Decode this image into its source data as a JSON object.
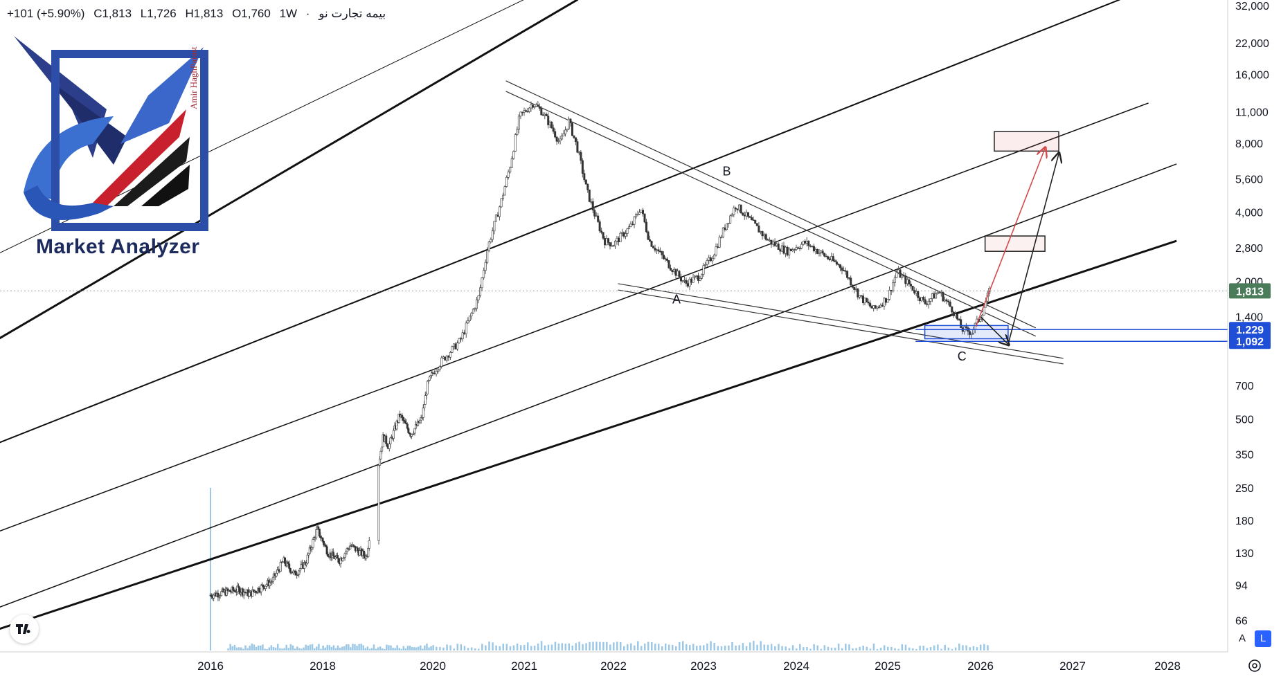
{
  "header": {
    "symbol": "بیمه تجارت نو",
    "interval_sep": "·",
    "interval": "1W",
    "open": "O1,760",
    "high": "H1,813",
    "low": "L1,726",
    "close": "C1,813",
    "change": "+101 (+5.90%)"
  },
  "watermark": {
    "brand": "Market Analyzer",
    "author": "Amir HaghParast"
  },
  "chart_data": {
    "type": "candlestick",
    "scale": "log",
    "ylim": [
      60,
      32000
    ],
    "price_axis_labels": [
      "32,000",
      "22,000",
      "16,000",
      "11,000",
      "8,000",
      "5,600",
      "4,000",
      "2,800",
      "2,000",
      "1,400",
      "700",
      "500",
      "350",
      "250",
      "180",
      "130",
      "94",
      "66"
    ],
    "time_axis_labels": [
      "2016",
      "2018",
      "2020",
      "2021",
      "2022",
      "2023",
      "2024",
      "2025",
      "2026",
      "2027",
      "2028"
    ],
    "last_price": {
      "value": 1813,
      "label": "1,813",
      "color": "#4a7c59"
    },
    "price_levels": [
      {
        "value": 1229,
        "label": "1,229",
        "color": "#1e4fd6"
      },
      {
        "value": 1092,
        "label": "1,092",
        "color": "#1e4fd6"
      }
    ],
    "price_path": [
      [
        2016.0,
        85
      ],
      [
        2016.3,
        88
      ],
      [
        2016.5,
        90
      ],
      [
        2016.7,
        86
      ],
      [
        2016.9,
        92
      ],
      [
        2017.1,
        98
      ],
      [
        2017.3,
        120
      ],
      [
        2017.5,
        105
      ],
      [
        2017.7,
        118
      ],
      [
        2017.9,
        165
      ],
      [
        2018.1,
        130
      ],
      [
        2018.3,
        120
      ],
      [
        2018.5,
        140
      ],
      [
        2018.8,
        125
      ],
      [
        2019.0,
        300
      ],
      [
        2019.1,
        420
      ],
      [
        2019.2,
        380
      ],
      [
        2019.4,
        520
      ],
      [
        2019.6,
        430
      ],
      [
        2019.8,
        500
      ],
      [
        2019.9,
        700
      ],
      [
        2020.1,
        900
      ],
      [
        2020.3,
        1100
      ],
      [
        2020.5,
        1700
      ],
      [
        2020.6,
        2800
      ],
      [
        2020.75,
        4500
      ],
      [
        2020.85,
        6500
      ],
      [
        2020.95,
        10500
      ],
      [
        2021.1,
        12000
      ],
      [
        2021.2,
        11000
      ],
      [
        2021.3,
        9500
      ],
      [
        2021.4,
        8000
      ],
      [
        2021.5,
        10000
      ],
      [
        2021.6,
        7500
      ],
      [
        2021.7,
        5000
      ],
      [
        2021.8,
        3800
      ],
      [
        2021.9,
        3000
      ],
      [
        2022.0,
        2900
      ],
      [
        2022.2,
        3500
      ],
      [
        2022.3,
        4200
      ],
      [
        2022.4,
        3000
      ],
      [
        2022.6,
        2400
      ],
      [
        2022.8,
        1950
      ],
      [
        2022.95,
        2100
      ],
      [
        2023.1,
        2600
      ],
      [
        2023.25,
        3600
      ],
      [
        2023.35,
        4300
      ],
      [
        2023.5,
        3700
      ],
      [
        2023.7,
        3000
      ],
      [
        2023.9,
        2700
      ],
      [
        2024.1,
        2950
      ],
      [
        2024.3,
        2600
      ],
      [
        2024.5,
        2300
      ],
      [
        2024.7,
        1700
      ],
      [
        2024.85,
        1500
      ],
      [
        2025.0,
        1700
      ],
      [
        2025.1,
        2200
      ],
      [
        2025.25,
        1900
      ],
      [
        2025.4,
        1600
      ],
      [
        2025.55,
        1800
      ],
      [
        2025.7,
        1500
      ],
      [
        2025.8,
        1230
      ],
      [
        2025.9,
        1200
      ],
      [
        2026.0,
        1400
      ],
      [
        2026.05,
        1600
      ],
      [
        2026.1,
        1813
      ]
    ],
    "points": [
      {
        "label": "A",
        "date": 2022.7,
        "value": 1600
      },
      {
        "label": "B",
        "date": 2023.25,
        "value": 5800
      },
      {
        "label": "C",
        "date": 2025.8,
        "value": 900
      }
    ],
    "channel_lines": [
      {
        "x1": 2013.0,
        "y1": 1900,
        "x2": 2021.0,
        "y2": 34000,
        "width": 1
      },
      {
        "x1": 2013.0,
        "y1": 750,
        "x2": 2021.6,
        "y2": 34000,
        "width": 3
      },
      {
        "x1": 2013.0,
        "y1": 300,
        "x2": 2027.5,
        "y2": 34000,
        "width": 2
      },
      {
        "x1": 2013.0,
        "y1": 125,
        "x2": 2027.8,
        "y2": 12000,
        "width": 1.5
      },
      {
        "x1": 2013.0,
        "y1": 58,
        "x2": 2028.1,
        "y2": 6500,
        "width": 1.5
      },
      {
        "x1": 2013.6,
        "y1": 58,
        "x2": 2028.1,
        "y2": 3000,
        "width": 3
      }
    ],
    "trend_lines": [
      {
        "x1": 2020.8,
        "y1": 15000,
        "x2": 2026.6,
        "y2": 1250
      },
      {
        "x1": 2020.8,
        "y1": 13500,
        "x2": 2026.6,
        "y2": 1150
      },
      {
        "x1": 2022.05,
        "y1": 1950,
        "x2": 2026.9,
        "y2": 920
      },
      {
        "x1": 2022.05,
        "y1": 1830,
        "x2": 2026.9,
        "y2": 870
      }
    ],
    "zones": [
      {
        "x1": 2025.4,
        "x2": 2026.3,
        "top": 1280,
        "bottom": 1120,
        "stroke": "#1e4fd6",
        "fill": "rgba(30,79,214,0.12)"
      },
      {
        "x1": 2026.05,
        "x2": 2026.7,
        "top": 3150,
        "bottom": 2700,
        "stroke": "#222222",
        "fill": "rgba(220,80,80,0.08)"
      },
      {
        "x1": 2026.15,
        "x2": 2026.85,
        "top": 9000,
        "bottom": 7400,
        "stroke": "#222222",
        "fill": "rgba(220,80,80,0.10)"
      }
    ],
    "arrows": [
      {
        "x1": 2025.95,
        "y1": 1270,
        "x2": 2026.7,
        "y2": 7600,
        "color": "#d44a4a"
      },
      {
        "x1": 2026.0,
        "y1": 1400,
        "x2": 2026.3,
        "y2": 1060,
        "color": "#222222"
      },
      {
        "x1": 2026.3,
        "y1": 1060,
        "x2": 2026.85,
        "y2": 7200,
        "color": "#222222"
      }
    ]
  },
  "controls": {
    "auto_label": "A",
    "log_label": "L"
  }
}
